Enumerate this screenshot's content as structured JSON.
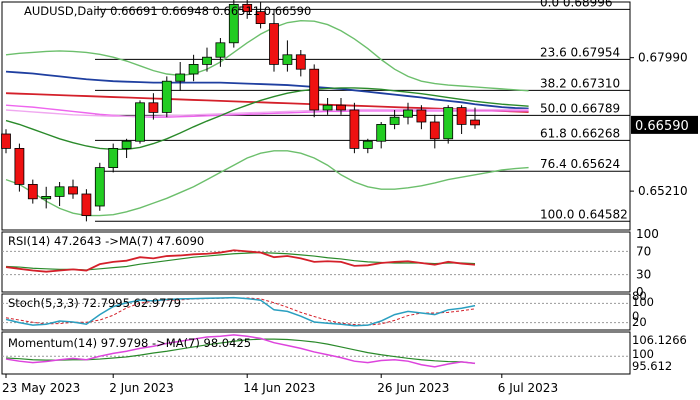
{
  "chart_data": {
    "type": "candlestick",
    "symbol": "AUDUSD",
    "timeframe": "Daily",
    "ohlc_header": [
      "0.66691",
      "0.66948",
      "0.66511",
      "0.66590"
    ],
    "title": "AUDUSD,Daily  0.66691 0.66948 0.66511 0.66590",
    "current_price": "0.66590",
    "price_ticks": [
      "0.67990",
      "0.65210"
    ],
    "price_range": [
      0.644,
      0.6915
    ],
    "x_ticks": [
      "23 May 2023",
      "2 Jun 2023",
      "14 Jun 2023",
      "26 Jun 2023",
      "6 Jul 2023"
    ],
    "x_tick_index": [
      0,
      8,
      18,
      28,
      37
    ],
    "fib_levels": [
      {
        "label": "0.0 0.68996",
        "price": 0.68996
      },
      {
        "label": "23.6 0.67954",
        "price": 0.67954
      },
      {
        "label": "38.2 0.67310",
        "price": 0.6731
      },
      {
        "label": "50.0 0.66789",
        "price": 0.66789
      },
      {
        "label": "61.8 0.66268",
        "price": 0.66268
      },
      {
        "label": "76.4 0.65624",
        "price": 0.65624
      },
      {
        "label": "100.0 0.64582",
        "price": 0.64582
      }
    ],
    "candles": [
      [
        0.664,
        0.665,
        0.66,
        0.661
      ],
      [
        0.661,
        0.662,
        0.652,
        0.6535
      ],
      [
        0.6535,
        0.6545,
        0.6495,
        0.6505
      ],
      [
        0.6505,
        0.653,
        0.6485,
        0.651
      ],
      [
        0.651,
        0.654,
        0.649,
        0.653
      ],
      [
        0.653,
        0.6545,
        0.6505,
        0.6515
      ],
      [
        0.6515,
        0.6525,
        0.6458,
        0.647
      ],
      [
        0.649,
        0.658,
        0.648,
        0.657
      ],
      [
        0.657,
        0.662,
        0.656,
        0.661
      ],
      [
        0.661,
        0.663,
        0.659,
        0.6625
      ],
      [
        0.6625,
        0.671,
        0.662,
        0.6705
      ],
      [
        0.6705,
        0.6725,
        0.667,
        0.6685
      ],
      [
        0.6685,
        0.676,
        0.6675,
        0.675
      ],
      [
        0.675,
        0.679,
        0.673,
        0.6765
      ],
      [
        0.6765,
        0.6805,
        0.675,
        0.6785
      ],
      [
        0.6785,
        0.682,
        0.677,
        0.68
      ],
      [
        0.68,
        0.684,
        0.678,
        0.683
      ],
      [
        0.683,
        0.692,
        0.682,
        0.691
      ],
      [
        0.691,
        0.6935,
        0.688,
        0.6895
      ],
      [
        0.6895,
        0.6915,
        0.686,
        0.687
      ],
      [
        0.687,
        0.69,
        0.677,
        0.6785
      ],
      [
        0.6785,
        0.6835,
        0.677,
        0.6805
      ],
      [
        0.6805,
        0.6815,
        0.676,
        0.6775
      ],
      [
        0.6775,
        0.6785,
        0.6675,
        0.669
      ],
      [
        0.669,
        0.6715,
        0.668,
        0.67
      ],
      [
        0.67,
        0.6715,
        0.668,
        0.669
      ],
      [
        0.669,
        0.6705,
        0.66,
        0.661
      ],
      [
        0.661,
        0.663,
        0.66,
        0.6625
      ],
      [
        0.6625,
        0.6665,
        0.661,
        0.666
      ],
      [
        0.666,
        0.669,
        0.665,
        0.6675
      ],
      [
        0.6675,
        0.6705,
        0.666,
        0.669
      ],
      [
        0.669,
        0.67,
        0.665,
        0.6665
      ],
      [
        0.6665,
        0.668,
        0.661,
        0.663
      ],
      [
        0.663,
        0.67,
        0.662,
        0.6695
      ],
      [
        0.6695,
        0.67,
        0.664,
        0.666
      ],
      [
        0.6669,
        0.6695,
        0.6651,
        0.6659
      ]
    ],
    "overlays": [
      {
        "color": "#1f3fa0",
        "values": [
          0.677,
          0.6768,
          0.6766,
          0.6763,
          0.676,
          0.6757,
          0.6754,
          0.6752,
          0.675,
          0.6749,
          0.6748,
          0.6747,
          0.6747,
          0.6747,
          0.6747,
          0.6747,
          0.6747,
          0.6746,
          0.6745,
          0.6744,
          0.6743,
          0.6742,
          0.674,
          0.6738,
          0.6736,
          0.6734,
          0.6731,
          0.6728,
          0.6725,
          0.6722,
          0.6719,
          0.6716,
          0.6712,
          0.6709,
          0.6706,
          0.6702,
          0.6699,
          0.6696,
          0.6694,
          0.6693
        ]
      },
      {
        "color": "#d4202a",
        "values": [
          0.6725,
          0.6724,
          0.6723,
          0.6722,
          0.6721,
          0.672,
          0.6719,
          0.6718,
          0.6717,
          0.6716,
          0.6715,
          0.6714,
          0.6713,
          0.6712,
          0.6711,
          0.671,
          0.6709,
          0.6708,
          0.6707,
          0.6706,
          0.6705,
          0.6704,
          0.6703,
          0.6702,
          0.6701,
          0.67,
          0.6699,
          0.6698,
          0.6697,
          0.6696,
          0.6695,
          0.6694,
          0.6693,
          0.6692,
          0.6691,
          0.669,
          0.6689,
          0.6688,
          0.6687,
          0.6686
        ]
      },
      {
        "color": "#ee66ee",
        "values": [
          0.67,
          0.6698,
          0.6696,
          0.6693,
          0.669,
          0.6687,
          0.6684,
          0.6681,
          0.6679,
          0.6677,
          0.6676,
          0.6675,
          0.6675,
          0.6676,
          0.6677,
          0.6678,
          0.6679,
          0.668,
          0.6681,
          0.6682,
          0.6683,
          0.6684,
          0.6685,
          0.6686,
          0.6687,
          0.6687,
          0.6688,
          0.6688,
          0.6688,
          0.6688,
          0.6688,
          0.6688,
          0.6688,
          0.6688,
          0.6688,
          0.6688,
          0.6688,
          0.6688,
          0.6688,
          0.6688
        ]
      },
      {
        "color": "#f0a8f0",
        "values": [
          0.669,
          0.6688,
          0.6686,
          0.6684,
          0.6682,
          0.668,
          0.6679,
          0.6678,
          0.6677,
          0.6677,
          0.6677,
          0.6677,
          0.6678,
          0.6679,
          0.668,
          0.6681,
          0.6682,
          0.6683,
          0.6684,
          0.6685,
          0.6686,
          0.6687,
          0.6688,
          0.6689,
          0.669,
          0.669,
          0.6691,
          0.6691,
          0.6691,
          0.6691,
          0.6691,
          0.6691,
          0.6691,
          0.6691,
          0.6691,
          0.6691,
          0.6691,
          0.6691,
          0.6691,
          0.6691
        ]
      },
      {
        "color": "#2a8a2a",
        "values": [
          0.6668,
          0.666,
          0.665,
          0.664,
          0.663,
          0.6622,
          0.6615,
          0.661,
          0.6608,
          0.6608,
          0.6612,
          0.662,
          0.663,
          0.6642,
          0.6655,
          0.6667,
          0.6678,
          0.669,
          0.67,
          0.671,
          0.6718,
          0.6725,
          0.673,
          0.6733,
          0.6735,
          0.6736,
          0.6736,
          0.6735,
          0.6733,
          0.673,
          0.6727,
          0.6724,
          0.672,
          0.6716,
          0.6712,
          0.6708,
          0.6705,
          0.6702,
          0.67,
          0.6698
        ]
      },
      {
        "color": "#6cbf6c",
        "values": [
          0.6805,
          0.6808,
          0.681,
          0.6812,
          0.6813,
          0.6812,
          0.681,
          0.6806,
          0.68,
          0.6792,
          0.6782,
          0.6772,
          0.6765,
          0.6762,
          0.6765,
          0.6775,
          0.679,
          0.681,
          0.683,
          0.6848,
          0.6862,
          0.6872,
          0.6876,
          0.6875,
          0.6868,
          0.6855,
          0.6838,
          0.6818,
          0.6795,
          0.6775,
          0.676,
          0.675,
          0.6745,
          0.6742,
          0.674,
          0.6738,
          0.6736,
          0.6734,
          0.6732,
          0.673
        ]
      },
      {
        "color": "#6cbf6c",
        "values": [
          0.6545,
          0.6535,
          0.6518,
          0.65,
          0.6485,
          0.6475,
          0.647,
          0.647,
          0.6472,
          0.6478,
          0.6486,
          0.6496,
          0.6506,
          0.6518,
          0.653,
          0.6545,
          0.656,
          0.6575,
          0.659,
          0.66,
          0.6605,
          0.6605,
          0.66,
          0.659,
          0.6575,
          0.6555,
          0.654,
          0.653,
          0.6525,
          0.6525,
          0.6528,
          0.6532,
          0.6538,
          0.6545,
          0.655,
          0.6555,
          0.656,
          0.6565,
          0.6568,
          0.657
        ]
      }
    ],
    "rsi": {
      "label": "RSI(14) 47.2643  ->MA(7) 47.6090",
      "ticks": [
        "100",
        "70",
        "30",
        "0"
      ],
      "tick_values": [
        100,
        70,
        30,
        0
      ],
      "levels": [
        70,
        30
      ],
      "rsi_values": [
        43,
        40,
        37,
        35,
        37,
        39,
        37,
        48,
        52,
        54,
        60,
        58,
        62,
        63,
        65,
        66,
        68,
        72,
        70,
        68,
        60,
        62,
        58,
        52,
        53,
        52,
        45,
        46,
        50,
        52,
        53,
        50,
        47,
        52,
        49,
        47
      ],
      "ma_values": [
        44,
        43,
        41,
        40,
        39,
        39,
        38,
        40,
        42,
        44,
        48,
        51,
        54,
        57,
        60,
        62,
        64,
        66,
        67,
        68,
        67,
        66,
        64,
        62,
        59,
        57,
        54,
        52,
        51,
        50,
        50,
        50,
        49,
        50,
        50,
        49
      ]
    },
    "stoch": {
      "label": "Stoch(5,3,3) 72.7995 62.9779",
      "ticks": [
        "80",
        "100",
        "0",
        "20"
      ],
      "tick_values": [
        80,
        100,
        0,
        20
      ],
      "levels": [
        80,
        20
      ],
      "k_values": [
        30,
        20,
        12,
        15,
        25,
        22,
        15,
        45,
        70,
        82,
        90,
        88,
        92,
        94,
        95,
        96,
        97,
        98,
        95,
        90,
        60,
        55,
        40,
        22,
        18,
        15,
        10,
        12,
        25,
        45,
        55,
        50,
        45,
        60,
        65,
        73
      ],
      "d_values": [
        35,
        28,
        21,
        16,
        17,
        21,
        21,
        28,
        43,
        66,
        81,
        87,
        90,
        91,
        94,
        95,
        96,
        97,
        97,
        94,
        82,
        68,
        52,
        39,
        27,
        18,
        14,
        12,
        16,
        27,
        42,
        50,
        50,
        52,
        57,
        63
      ]
    },
    "momentum": {
      "label": "Momentum(14) 97.9798  ->MA(7) 98.0425",
      "ticks": [
        "106.1266",
        "100",
        "95.612"
      ],
      "tick_values": [
        106.1266,
        100,
        95.612
      ],
      "level": 100,
      "range": [
        95.0,
        106.8
      ],
      "mom_values": [
        99.2,
        98.6,
        98.2,
        98.5,
        99.0,
        99.4,
        99.0,
        100.0,
        100.8,
        101.4,
        102.2,
        102.8,
        103.6,
        104.2,
        104.8,
        105.4,
        105.6,
        106.0,
        105.6,
        105.0,
        103.8,
        103.0,
        102.2,
        101.2,
        100.4,
        99.6,
        98.6,
        98.2,
        98.8,
        99.0,
        98.6,
        97.6,
        97.0,
        97.8,
        98.4,
        98.0
      ],
      "ma_values": [
        99.5,
        99.3,
        99.0,
        98.9,
        98.9,
        99.0,
        99.0,
        99.2,
        99.5,
        99.8,
        100.3,
        100.9,
        101.4,
        102.0,
        102.6,
        103.2,
        103.7,
        104.2,
        104.6,
        104.8,
        104.8,
        104.7,
        104.4,
        104.0,
        103.4,
        102.6,
        101.8,
        101.0,
        100.4,
        99.9,
        99.4,
        99.0,
        98.7,
        98.5,
        98.4,
        98.0
      ]
    }
  }
}
